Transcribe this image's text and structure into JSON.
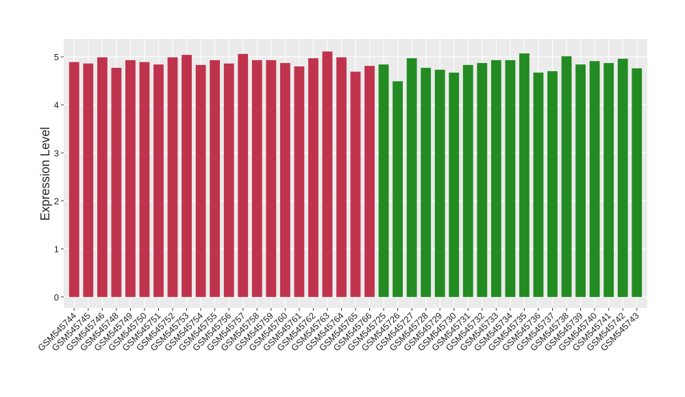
{
  "chart_data": {
    "type": "bar",
    "y_label": "Expression Level",
    "categories": [
      "GSM545744",
      "GSM545745",
      "GSM545746",
      "GSM545748",
      "GSM545749",
      "GSM545750",
      "GSM545751",
      "GSM545752",
      "GSM545753",
      "GSM545754",
      "GSM545755",
      "GSM545756",
      "GSM545757",
      "GSM545758",
      "GSM545759",
      "GSM545760",
      "GSM545761",
      "GSM545762",
      "GSM545763",
      "GSM545764",
      "GSM545765",
      "GSM545766",
      "GSM545725",
      "GSM545726",
      "GSM545727",
      "GSM545728",
      "GSM545729",
      "GSM545730",
      "GSM545731",
      "GSM545732",
      "GSM545733",
      "GSM545734",
      "GSM545735",
      "GSM545736",
      "GSM545737",
      "GSM545738",
      "GSM545739",
      "GSM545740",
      "GSM545741",
      "GSM545742",
      "GSM545743"
    ],
    "values": [
      4.89,
      4.86,
      4.99,
      4.77,
      4.93,
      4.89,
      4.84,
      4.99,
      5.04,
      4.83,
      4.93,
      4.86,
      5.06,
      4.93,
      4.93,
      4.87,
      4.8,
      4.97,
      5.11,
      4.99,
      4.69,
      4.81,
      4.84,
      4.49,
      4.97,
      4.77,
      4.73,
      4.67,
      4.83,
      4.87,
      4.93,
      4.93,
      5.07,
      4.67,
      4.7,
      5.01,
      4.84,
      4.91,
      4.87,
      4.96,
      4.76
    ],
    "colors": [
      "#c0334d",
      "#c0334d",
      "#c0334d",
      "#c0334d",
      "#c0334d",
      "#c0334d",
      "#c0334d",
      "#c0334d",
      "#c0334d",
      "#c0334d",
      "#c0334d",
      "#c0334d",
      "#c0334d",
      "#c0334d",
      "#c0334d",
      "#c0334d",
      "#c0334d",
      "#c0334d",
      "#c0334d",
      "#c0334d",
      "#c0334d",
      "#c0334d",
      "#228b22",
      "#228b22",
      "#228b22",
      "#228b22",
      "#228b22",
      "#228b22",
      "#228b22",
      "#228b22",
      "#228b22",
      "#228b22",
      "#228b22",
      "#228b22",
      "#228b22",
      "#228b22",
      "#228b22",
      "#228b22",
      "#228b22",
      "#228b22",
      "#228b22"
    ],
    "ylim": [
      -0.23,
      5.37
    ],
    "yticks": [
      0,
      1,
      2,
      3,
      4,
      5
    ],
    "grid": true
  }
}
